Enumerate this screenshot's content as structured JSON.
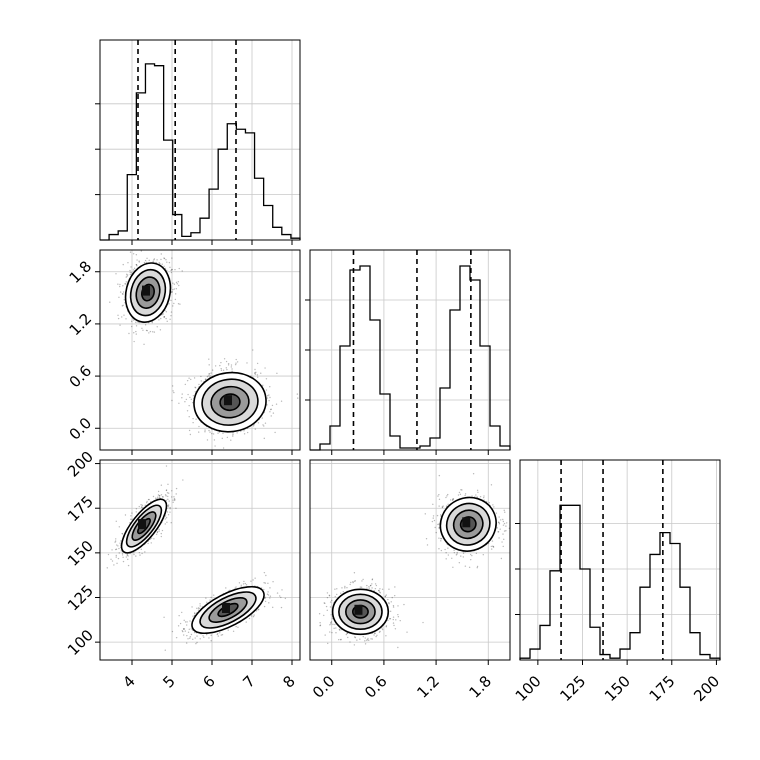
{
  "chart_data": {
    "type": "corner",
    "parameters": [
      {
        "index": 0,
        "range": [
          3.2,
          8.2
        ],
        "ticks": [
          4,
          5,
          6,
          7,
          8
        ],
        "tick_labels": [
          "4",
          "5",
          "6",
          "7",
          "8"
        ],
        "quantiles": [
          4.15,
          5.08,
          6.6
        ],
        "histogram": [
          0,
          0.03,
          0.05,
          0.36,
          0.81,
          0.97,
          0.96,
          0.55,
          0.14,
          0.02,
          0.04,
          0.12,
          0.28,
          0.5,
          0.64,
          0.61,
          0.59,
          0.34,
          0.19,
          0.07,
          0.03,
          0.01
        ],
        "modes": [
          {
            "mean": 4.35,
            "sd": 0.28
          },
          {
            "mean": 6.4,
            "sd": 0.45
          }
        ]
      },
      {
        "index": 1,
        "range": [
          -0.25,
          2.05
        ],
        "ticks": [
          0.0,
          0.6,
          1.2,
          1.8
        ],
        "tick_labels": [
          "0.0",
          "0.6",
          "1.2",
          "1.8"
        ],
        "quantiles": [
          0.25,
          0.98,
          1.6
        ],
        "histogram": [
          0,
          0.03,
          0.12,
          0.52,
          0.9,
          0.92,
          0.65,
          0.28,
          0.07,
          0.01,
          0.01,
          0.02,
          0.06,
          0.31,
          0.7,
          0.92,
          0.85,
          0.52,
          0.12,
          0.02
        ],
        "modes": [
          {
            "mean": 0.33,
            "sd": 0.16
          },
          {
            "mean": 1.55,
            "sd": 0.16
          }
        ]
      },
      {
        "index": 2,
        "range": [
          90,
          202
        ],
        "ticks": [
          100,
          125,
          150,
          175,
          200
        ],
        "tick_labels": [
          "100",
          "125",
          "150",
          "175",
          "200"
        ],
        "quantiles": [
          113,
          136.5,
          170
        ],
        "histogram": [
          0.01,
          0.06,
          0.19,
          0.49,
          0.85,
          0.85,
          0.5,
          0.18,
          0.03,
          0.01,
          0.06,
          0.15,
          0.4,
          0.58,
          0.7,
          0.64,
          0.4,
          0.15,
          0.03,
          0.01
        ],
        "modes": [
          {
            "mean": 116.5,
            "sd": 6.2
          },
          {
            "mean": 166,
            "sd": 7
          }
        ]
      }
    ],
    "pair_panels": [
      {
        "x_param": 0,
        "y_param": 1,
        "clusters": [
          {
            "mx": 4.4,
            "my": 1.56,
            "sx": 0.28,
            "sy": 0.17,
            "rho": 0.15
          },
          {
            "mx": 6.45,
            "my": 0.3,
            "sx": 0.45,
            "sy": 0.17,
            "rho": 0.05
          }
        ]
      },
      {
        "x_param": 0,
        "y_param": 2,
        "clusters": [
          {
            "mx": 4.3,
            "my": 165,
            "sx": 0.28,
            "sy": 7.5,
            "rho": 0.75
          },
          {
            "mx": 6.4,
            "my": 118,
            "sx": 0.45,
            "sy": 6.5,
            "rho": 0.65
          }
        ]
      },
      {
        "x_param": 1,
        "y_param": 2,
        "clusters": [
          {
            "mx": 1.57,
            "my": 166,
            "sx": 0.16,
            "sy": 7.5,
            "rho": 0.05
          },
          {
            "mx": 0.33,
            "my": 117,
            "sx": 0.16,
            "sy": 6.3,
            "rho": 0.0
          }
        ]
      }
    ],
    "grid": true,
    "xlabels": [
      "",
      "",
      ""
    ],
    "ylabels": [
      "",
      "",
      ""
    ],
    "colors": {
      "line": "#000000",
      "grid": "#c8c8c8",
      "points": "#000000"
    }
  }
}
